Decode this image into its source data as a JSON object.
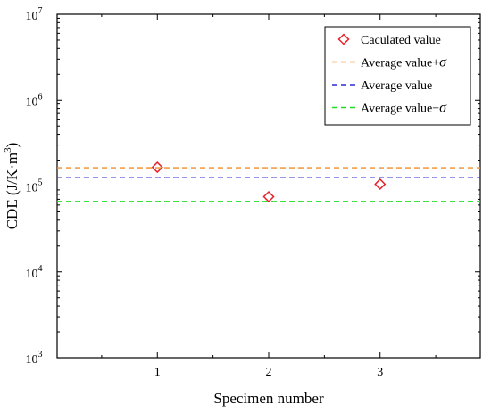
{
  "chart_data": {
    "type": "scatter",
    "xlabel": "Specimen number",
    "ylabel": {
      "base": "CDE (J/K·m",
      "sup": "3",
      "close": ")"
    },
    "x_scale": "linear",
    "y_scale": "log",
    "xlim": [
      0.1,
      3.9
    ],
    "ylim": [
      1000,
      10000000
    ],
    "x_ticks": [
      1,
      2,
      3
    ],
    "x_tick_labels": [
      "1",
      "2",
      "3"
    ],
    "y_ticks": [
      1000,
      10000,
      100000,
      1000000,
      10000000
    ],
    "y_tick_labels": [
      {
        "base": "10",
        "exp": "3"
      },
      {
        "base": "10",
        "exp": "4"
      },
      {
        "base": "10",
        "exp": "5"
      },
      {
        "base": "10",
        "exp": "6"
      },
      {
        "base": "10",
        "exp": "7"
      }
    ],
    "grid": false,
    "legend_position": "top-right",
    "series": [
      {
        "name": "Caculated value",
        "kind": "points",
        "marker": "diamond-open",
        "color": "#e8212a",
        "x": [
          1,
          2,
          3
        ],
        "y": [
          165000,
          75000,
          105000
        ]
      },
      {
        "name": "Average value+",
        "name_symbol": "σ",
        "kind": "hline",
        "style": "dashed",
        "color": "#f28c28",
        "y": 163000
      },
      {
        "name": "Average value",
        "kind": "hline",
        "style": "dashed",
        "color": "#2b2bd6",
        "y": 125000
      },
      {
        "name": "Average value−",
        "name_symbol": "σ",
        "kind": "hline",
        "style": "dashed",
        "color": "#22dd22",
        "y": 66000
      }
    ]
  }
}
